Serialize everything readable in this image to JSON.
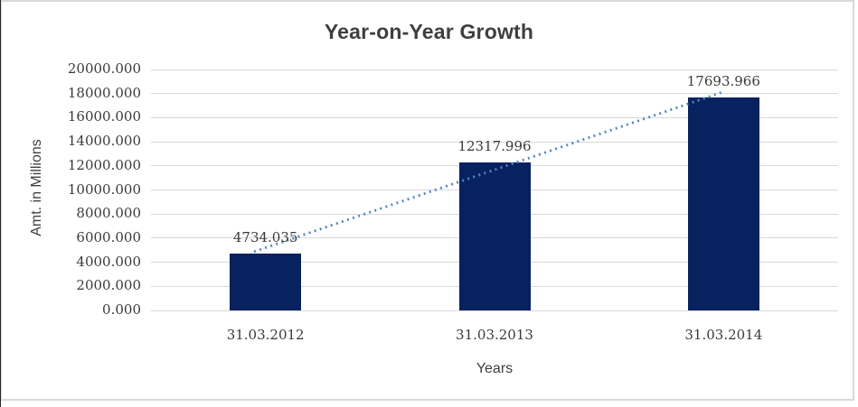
{
  "chart_data": {
    "type": "bar",
    "title": "Year-on-Year Growth",
    "categories": [
      "31.03.2012",
      "31.03.2013",
      "31.03.2014"
    ],
    "values": [
      4734.035,
      12317.996,
      17693.966
    ],
    "data_labels": [
      "4734.035",
      "12317.996",
      "17693.966"
    ],
    "xlabel": "Years",
    "ylabel": "Amt. in Millions",
    "ylim": [
      0,
      20000
    ],
    "ytick_step": 2000,
    "ytick_decimals": 3,
    "grid": true,
    "legend": "none",
    "colors": {
      "bar": "#08215f",
      "gridline": "#d9d9d9",
      "trendline": "#4e87c8",
      "text": "#3a3a3a",
      "frame_border": "#d9d9d9"
    },
    "trendline": {
      "type": "linear",
      "style": "dotted",
      "color": "#4e87c8",
      "x_span": [
        -0.05,
        2.0
      ],
      "y_span": [
        4880,
        18150
      ]
    }
  }
}
